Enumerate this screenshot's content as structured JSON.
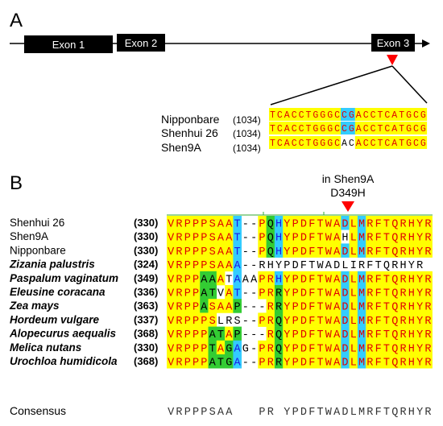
{
  "panelA": {
    "label": "A",
    "exons": [
      "Exon 1",
      "Exon 2",
      "Exon 3"
    ],
    "samples": [
      {
        "name": "Nipponbare",
        "pos": "(1034)",
        "seq": "TCACCTGGGCCGACCTCATGCG"
      },
      {
        "name": "Shenhui 26",
        "pos": "(1034)",
        "seq": "TCACCTGGGCCGACCTCATGCG"
      },
      {
        "name": "Shen9A",
        "pos": "(1034)",
        "seq": "TCACCTGGGCACACCTCATGCG"
      }
    ]
  },
  "panelB": {
    "label": "B",
    "mutation_line1": "in Shen9A",
    "mutation_line2": "D349H",
    "rows": [
      {
        "name": "Shenhui 26",
        "italic": false,
        "pos": "(330)",
        "seq": "VRPPPSAAT--PQHYPDFTWADLMRFTQRHYR"
      },
      {
        "name": "Shen9A",
        "italic": false,
        "pos": "(330)",
        "seq": "VRPPPSAAT--PQHYPDFTWAHLMRFTQRHYR"
      },
      {
        "name": "Nipponbare",
        "italic": false,
        "pos": "(330)",
        "seq": "VRPPPSAAT--PQHYPDFTWADLMRFTQRHYR"
      },
      {
        "name": "Zizania palustris",
        "italic": true,
        "pos": "(324)",
        "seq": "VRPPPSAAA--RHYPDFTWADLIRFTQRHYR"
      },
      {
        "name": "Paspalum vaginatum",
        "italic": true,
        "pos": "(349)",
        "seq": "VRPPAAATAAAPRHYPDFTWADLMRFTQRHYR"
      },
      {
        "name": "Eleusine coracana",
        "italic": true,
        "pos": "(336)",
        "seq": "VRPPATVAT--PRRYPDFTWADLMRFTQRHYR"
      },
      {
        "name": "Zea mays",
        "italic": true,
        "pos": "(363)",
        "seq": "VRPPASAAP---RRYPDFTWADLMRFTQRHYR"
      },
      {
        "name": "Hordeum vulgare",
        "italic": true,
        "pos": "(337)",
        "seq": "VRPPPSLRS--PRQYPDFTWADLMRFTQRHYR"
      },
      {
        "name": "Alopecurus aequalis",
        "italic": true,
        "pos": "(368)",
        "seq": "VRPPPATAP---RQYPDFTWADLMRFTQRHYR"
      },
      {
        "name": "Melica nutans",
        "italic": true,
        "pos": "(330)",
        "seq": "VRPPPTAGAG-PRQYPDFTWADLMRFTQRHYR"
      },
      {
        "name": "Urochloa humidicola",
        "italic": true,
        "pos": "(368)",
        "seq": "VRPPPATGA--PRRYPDFTWADLMRFTQRHYR"
      }
    ],
    "consensus_label": "Consensus",
    "consensus": "VRPPPSAA   PR YPDFTWADLMRFTQRHYR"
  },
  "colors": {
    "yellow": "#ffff00",
    "cyan": "#33ccff",
    "green": "#33cc33",
    "red_text": "#e00000",
    "blue_text": "#1a1ae6",
    "green_text": "#008000",
    "marker": "#ff0000"
  }
}
